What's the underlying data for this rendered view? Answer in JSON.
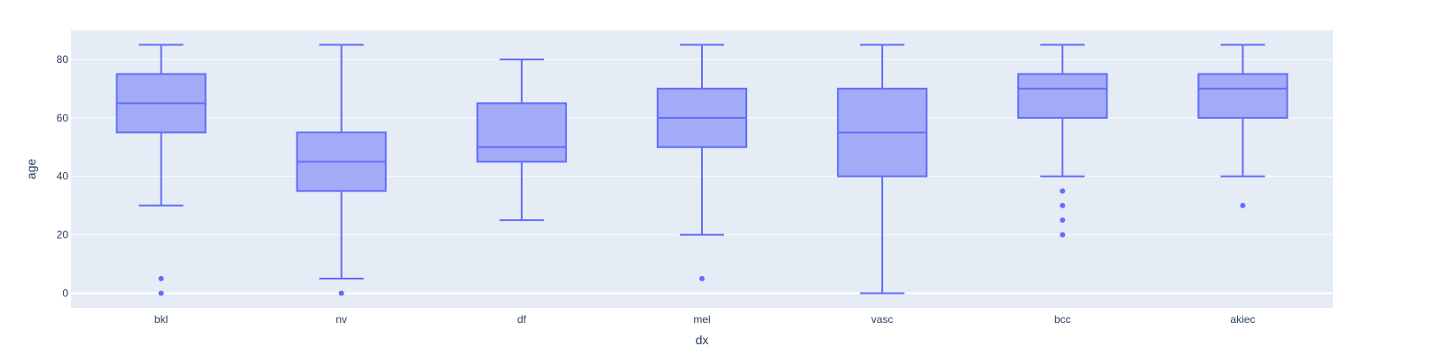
{
  "chart_data": {
    "type": "box",
    "xlabel": "dx",
    "ylabel": "age",
    "ylim": [
      -5,
      90
    ],
    "yticks": [
      0,
      20,
      40,
      60,
      80
    ],
    "grid": true,
    "colors": {
      "plot_bg": "#e5ecf6",
      "grid": "#ffffff",
      "box_line": "#636efa",
      "box_fill": "#a3abf8",
      "text": "#2a3f5f"
    },
    "categories": [
      "bkl",
      "nv",
      "df",
      "mel",
      "vasc",
      "bcc",
      "akiec"
    ],
    "boxes": [
      {
        "category": "bkl",
        "whisker_low": 30,
        "q1": 55,
        "median": 65,
        "q3": 75,
        "whisker_high": 85,
        "outliers": [
          5,
          0
        ]
      },
      {
        "category": "nv",
        "whisker_low": 5,
        "q1": 35,
        "median": 45,
        "q3": 55,
        "whisker_high": 85,
        "outliers": [
          0
        ]
      },
      {
        "category": "df",
        "whisker_low": 25,
        "q1": 45,
        "median": 50,
        "q3": 65,
        "whisker_high": 80,
        "outliers": []
      },
      {
        "category": "mel",
        "whisker_low": 20,
        "q1": 50,
        "median": 60,
        "q3": 70,
        "whisker_high": 85,
        "outliers": [
          5
        ]
      },
      {
        "category": "vasc",
        "whisker_low": 0,
        "q1": 40,
        "median": 55,
        "q3": 70,
        "whisker_high": 85,
        "outliers": []
      },
      {
        "category": "bcc",
        "whisker_low": 40,
        "q1": 60,
        "median": 70,
        "q3": 75,
        "whisker_high": 85,
        "outliers": [
          35,
          30,
          25,
          20
        ]
      },
      {
        "category": "akiec",
        "whisker_low": 40,
        "q1": 60,
        "median": 70,
        "q3": 75,
        "whisker_high": 85,
        "outliers": [
          30
        ]
      }
    ]
  }
}
